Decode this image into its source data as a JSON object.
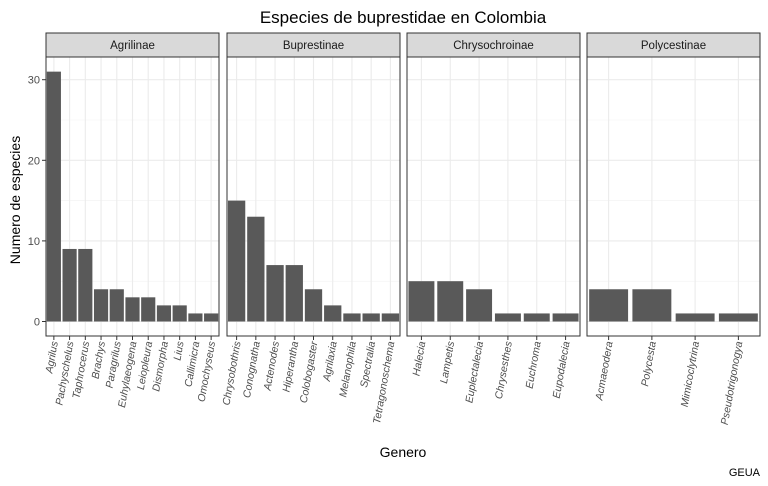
{
  "chart_data": {
    "type": "bar",
    "title": "Especies de buprestidae en Colombia",
    "xlabel": "Genero",
    "ylabel": "Numero de especies",
    "caption": "GEUA",
    "ylim": [
      0,
      35
    ],
    "yticks": [
      0,
      10,
      20,
      30
    ],
    "grid": true,
    "bar_color": "#595959",
    "facets": [
      {
        "name": "Agrilinae",
        "categories": [
          "Agrilus",
          "Pachyschelus",
          "Taphrocerus",
          "Brachys",
          "Paragrilus",
          "Euhylaeogena",
          "Leiopleura",
          "Dismorpha",
          "Lius",
          "Callimicra",
          "Omochyseus"
        ],
        "values": [
          31,
          9,
          9,
          4,
          4,
          3,
          3,
          2,
          2,
          1,
          1
        ]
      },
      {
        "name": "Buprestinae",
        "categories": [
          "Chrysobothris",
          "Conognatha",
          "Actenodes",
          "Hiperantha",
          "Colobogaster",
          "Agrilaxia",
          "Melanophila",
          "Spectralia",
          "Tetragonoschema"
        ],
        "values": [
          15,
          13,
          7,
          7,
          4,
          2,
          1,
          1,
          1
        ]
      },
      {
        "name": "Chrysochroinae",
        "categories": [
          "Halecia",
          "Lampetis",
          "Euplectalecia",
          "Chrysesthes",
          "Euchroma",
          "Eupodalecia"
        ],
        "values": [
          5,
          5,
          4,
          1,
          1,
          1
        ]
      },
      {
        "name": "Polycestinae",
        "categories": [
          "Acmaeodera",
          "Polycesta",
          "Mimicoclytrina",
          "Pseudotrigonogya"
        ],
        "values": [
          4,
          4,
          1,
          1
        ]
      }
    ]
  }
}
